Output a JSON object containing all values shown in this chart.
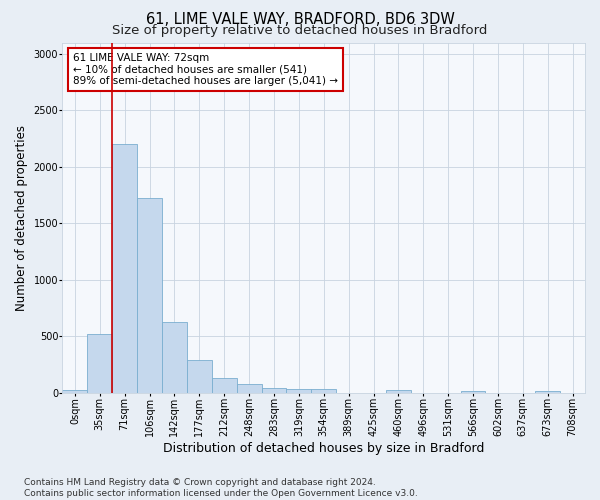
{
  "title": "61, LIME VALE WAY, BRADFORD, BD6 3DW",
  "subtitle": "Size of property relative to detached houses in Bradford",
  "xlabel": "Distribution of detached houses by size in Bradford",
  "ylabel": "Number of detached properties",
  "categories": [
    "0sqm",
    "35sqm",
    "71sqm",
    "106sqm",
    "142sqm",
    "177sqm",
    "212sqm",
    "248sqm",
    "283sqm",
    "319sqm",
    "354sqm",
    "389sqm",
    "425sqm",
    "460sqm",
    "496sqm",
    "531sqm",
    "566sqm",
    "602sqm",
    "637sqm",
    "673sqm",
    "708sqm"
  ],
  "values": [
    30,
    520,
    2200,
    1720,
    630,
    290,
    130,
    75,
    40,
    35,
    35,
    0,
    0,
    30,
    0,
    0,
    20,
    0,
    0,
    20,
    0
  ],
  "bar_color": "#c5d8ed",
  "bar_edge_color": "#7aaed0",
  "vline_color": "#cc0000",
  "annotation_text": "61 LIME VALE WAY: 72sqm\n← 10% of detached houses are smaller (541)\n89% of semi-detached houses are larger (5,041) →",
  "annotation_box_facecolor": "#ffffff",
  "annotation_box_edgecolor": "#cc0000",
  "ylim": [
    0,
    3100
  ],
  "yticks": [
    0,
    500,
    1000,
    1500,
    2000,
    2500,
    3000
  ],
  "footer": "Contains HM Land Registry data © Crown copyright and database right 2024.\nContains public sector information licensed under the Open Government Licence v3.0.",
  "bg_color": "#e8eef5",
  "plot_bg_color": "#f5f8fc",
  "grid_color": "#c8d4e0",
  "title_fontsize": 10.5,
  "subtitle_fontsize": 9.5,
  "ylabel_fontsize": 8.5,
  "xlabel_fontsize": 9,
  "tick_fontsize": 7,
  "footer_fontsize": 6.5,
  "annotation_fontsize": 7.5
}
